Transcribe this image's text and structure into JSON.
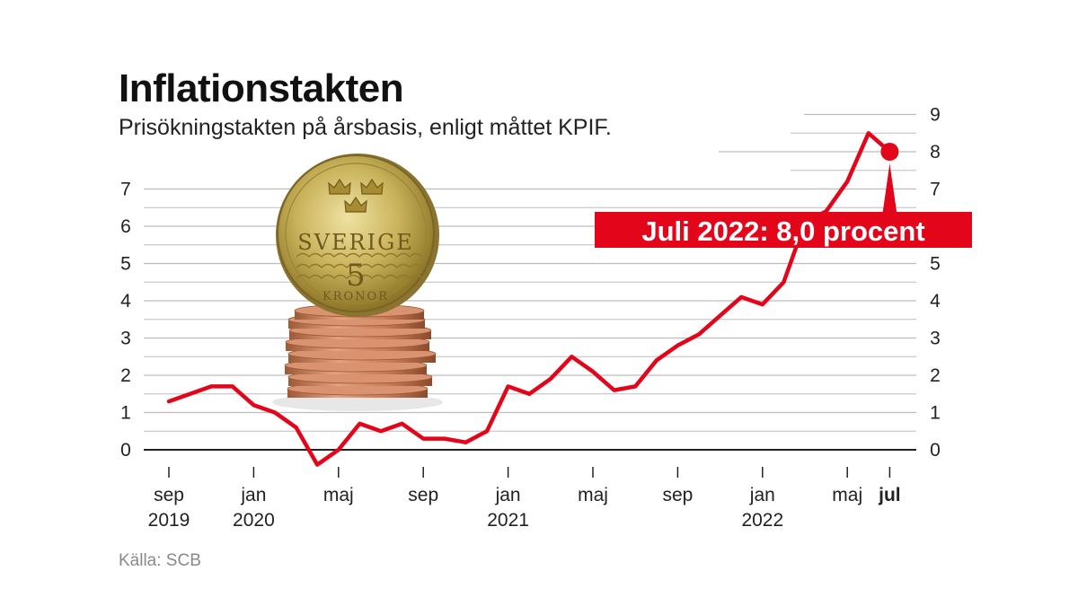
{
  "title": "Inflationstakten",
  "subtitle": "Prisökningstakten på årsbasis, enligt måttet KPIF.",
  "source": "Källa: SCB",
  "colors": {
    "line": "#e3061b",
    "grid": "#bdbdbd",
    "zero": "#222222",
    "text": "#222222",
    "source": "#8a8a8a"
  },
  "image": "coin-stack-sverige-5-kronor",
  "coin": {
    "country": "SVERIGE",
    "denomination": "5",
    "unit": "KRONOR"
  },
  "chart_data": {
    "type": "line",
    "title": "Inflationstakten",
    "ylim": [
      -0.6,
      9
    ],
    "y_ticks_left": [
      0,
      1,
      2,
      3,
      4,
      5,
      6,
      7
    ],
    "y_ticks_right": [
      0,
      1,
      2,
      3,
      4,
      5,
      6,
      7,
      8,
      9
    ],
    "grid": true,
    "x_ticks": [
      {
        "label": "sep",
        "year": "2019",
        "bold": false
      },
      {
        "label": "jan",
        "year": "2020",
        "bold": false
      },
      {
        "label": "maj",
        "year": "",
        "bold": false
      },
      {
        "label": "sep",
        "year": "",
        "bold": false
      },
      {
        "label": "jan",
        "year": "2021",
        "bold": false
      },
      {
        "label": "maj",
        "year": "",
        "bold": false
      },
      {
        "label": "sep",
        "year": "",
        "bold": false
      },
      {
        "label": "jan",
        "year": "2022",
        "bold": false
      },
      {
        "label": "maj",
        "year": "",
        "bold": false
      },
      {
        "label": "jul",
        "year": "",
        "bold": true
      }
    ],
    "series": [
      {
        "x": [
          "2019-09",
          "2019-10",
          "2019-11",
          "2019-12",
          "2020-01",
          "2020-02",
          "2020-03",
          "2020-04",
          "2020-05",
          "2020-06",
          "2020-07",
          "2020-08",
          "2020-09",
          "2020-10",
          "2020-11",
          "2020-12",
          "2021-01",
          "2021-02",
          "2021-03",
          "2021-04",
          "2021-05",
          "2021-06",
          "2021-07",
          "2021-08",
          "2021-09",
          "2021-10",
          "2021-11",
          "2021-12",
          "2022-01",
          "2022-02",
          "2022-03",
          "2022-04",
          "2022-05",
          "2022-06",
          "2022-07"
        ],
        "values": [
          1.3,
          1.5,
          1.7,
          1.7,
          1.2,
          1.0,
          0.6,
          -0.4,
          0.0,
          0.7,
          0.5,
          0.7,
          0.3,
          0.3,
          0.2,
          0.5,
          1.7,
          1.5,
          1.9,
          2.5,
          2.1,
          1.6,
          1.7,
          2.4,
          2.8,
          3.1,
          3.6,
          4.1,
          3.9,
          4.5,
          6.1,
          6.4,
          7.2,
          8.5,
          8.0
        ]
      }
    ],
    "annotation": {
      "text": "Juli 2022: 8,0 procent",
      "x": "2022-07",
      "y": 8.0
    }
  }
}
